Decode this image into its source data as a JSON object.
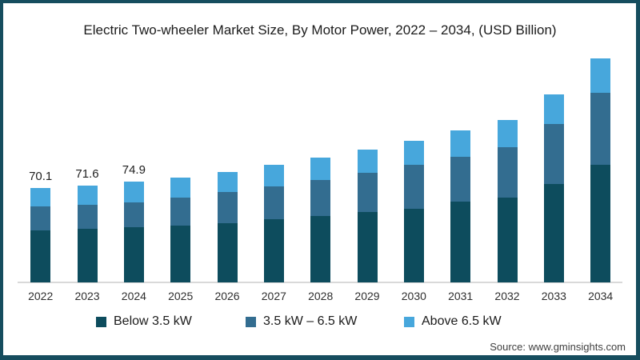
{
  "chart_data": {
    "type": "bar",
    "stacked": true,
    "title": "Electric Two-wheeler Market Size, By Motor Power, 2022 – 2034, (USD Billion)",
    "unit": "USD Billion",
    "grid": false,
    "legend_position": "bottom",
    "categories": [
      "2022",
      "2023",
      "2024",
      "2025",
      "2026",
      "2027",
      "2028",
      "2029",
      "2030",
      "2031",
      "2032",
      "2033",
      "2034"
    ],
    "series": [
      {
        "name": "Below 3.5 kW",
        "color": "#0d4c5d",
        "values": [
          38.8,
          39.5,
          40.8,
          41.9,
          44.1,
          46.8,
          49.4,
          52.4,
          54.9,
          59.9,
          63.2,
          73.1,
          87.1
        ]
      },
      {
        "name": "3.5 kW – 6.5 kW",
        "color": "#336d90",
        "values": [
          17.4,
          17.9,
          18.4,
          20.9,
          23.1,
          24.7,
          26.4,
          28.8,
          32.6,
          33.6,
          37.2,
          44.4,
          53.4
        ]
      },
      {
        "name": "Above 6.5 kW",
        "color": "#47a7dc",
        "values": [
          13.9,
          14.2,
          15.7,
          15.1,
          14.8,
          15.6,
          17.0,
          17.6,
          17.6,
          19.1,
          20.1,
          21.9,
          25.5
        ]
      }
    ],
    "totals": [
      70.1,
      71.6,
      74.9,
      77.9,
      82.0,
      87.1,
      92.8,
      98.8,
      105.1,
      112.6,
      120.5,
      139.4,
      166.0
    ],
    "value_labels": {
      "2022": "70.1",
      "2023": "71.6",
      "2024": "74.9"
    }
  },
  "colors": {
    "frame_border": "#164d5e",
    "axis_line": "#d9d9d9",
    "background": "#ffffff"
  },
  "source": "Source: www.gminsights.com"
}
